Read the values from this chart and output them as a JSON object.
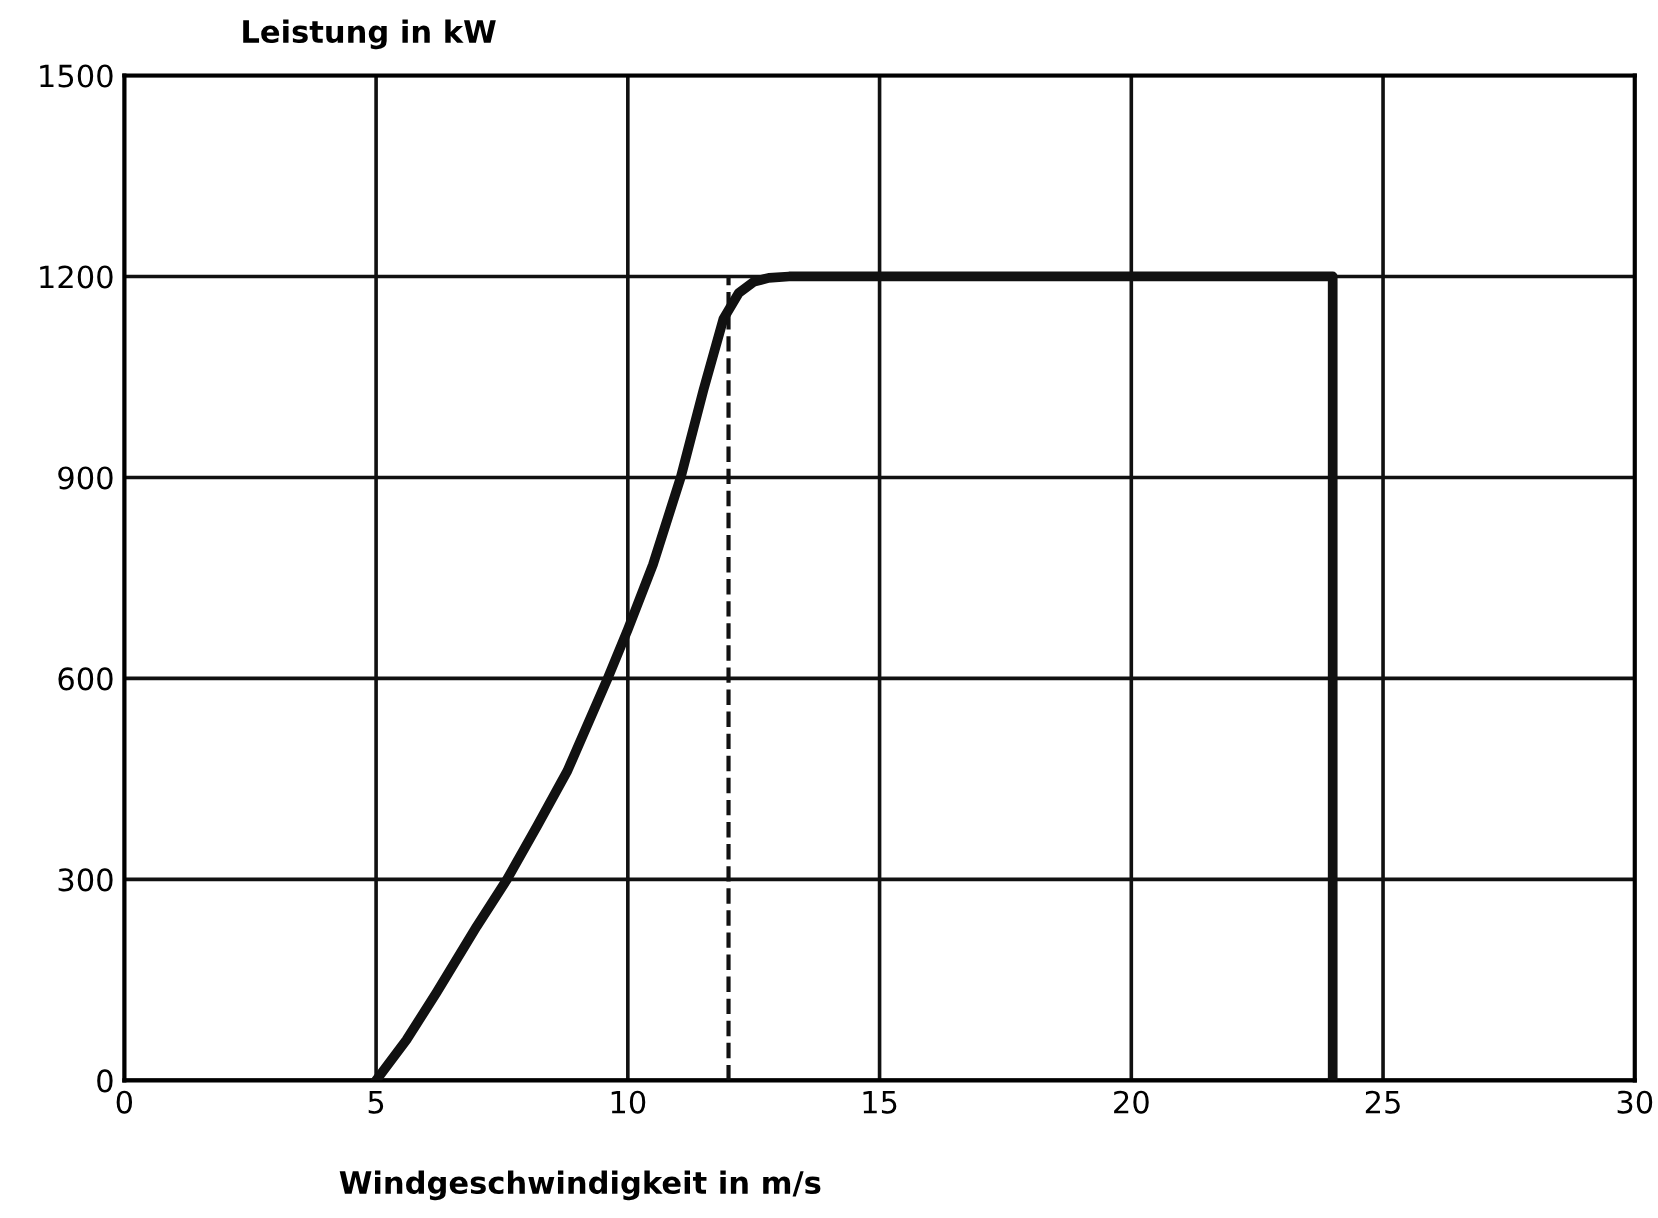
{
  "chart_data": {
    "type": "line",
    "xlabel": "Windgeschwindigkeit in m/s",
    "ylabel": "Leistung in kW",
    "series": [
      {
        "color": "#111111",
        "line_style": "solid",
        "x": [
          5,
          5.6,
          6.2,
          7,
          7.6,
          8.2,
          8.8,
          9.6,
          10,
          10.5,
          11.05,
          11.5,
          11.9,
          12.2,
          12.5,
          12.8,
          13.2,
          18,
          24,
          24
        ],
        "values": [
          0,
          60,
          131,
          230,
          300,
          380,
          462,
          600,
          673,
          770,
          900,
          1030,
          1137,
          1175,
          1192,
          1198,
          1200,
          1200,
          1200,
          0
        ]
      },
      {
        "color": "#111111",
        "line_style": "dashed",
        "x": [
          12,
          12
        ],
        "values": [
          0,
          1200
        ]
      }
    ],
    "xlim": [
      0,
      30
    ],
    "ylim": [
      0,
      1500
    ],
    "xticks": [
      0,
      5,
      10,
      15,
      20,
      25,
      30
    ],
    "yticks": [
      0,
      300,
      600,
      900,
      1200,
      1500
    ],
    "grid": true,
    "legend": false,
    "marker": "none"
  }
}
